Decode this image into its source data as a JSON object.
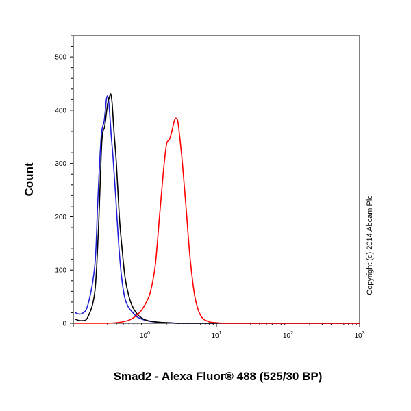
{
  "chart_data": {
    "type": "line",
    "title": "",
    "xlabel": "Smad2 - Alexa Fluor® 488 (525/30 BP)",
    "ylabel": "Count",
    "x_scale": "log",
    "xlim": [
      0.1,
      1000
    ],
    "ylim": [
      0,
      540
    ],
    "x_ticks": [
      {
        "value": 1,
        "base": "10",
        "exp": "0"
      },
      {
        "value": 10,
        "base": "10",
        "exp": "1"
      },
      {
        "value": 100,
        "base": "10",
        "exp": "2"
      },
      {
        "value": 1000,
        "base": "10",
        "exp": "3"
      }
    ],
    "y_ticks": [
      0,
      100,
      200,
      300,
      400,
      500
    ],
    "grid": false,
    "legend": "none",
    "annotation": "Copyright (c) 2014 Abcam Plc",
    "series": [
      {
        "color": "#1f1fd6",
        "x": [
          0.106,
          0.13,
          0.16,
          0.2,
          0.22,
          0.245,
          0.27,
          0.29,
          0.305,
          0.32,
          0.34,
          0.36,
          0.39,
          0.43,
          0.47,
          0.52,
          0.58,
          0.66,
          0.78,
          0.95,
          1.15,
          1.5,
          2,
          3,
          5,
          10,
          1000
        ],
        "y": [
          20,
          18,
          35,
          110,
          230,
          350,
          380,
          420,
          425,
          400,
          350,
          310,
          240,
          150,
          90,
          50,
          32,
          22,
          12,
          7,
          4,
          2,
          1,
          0,
          0,
          0,
          0
        ]
      },
      {
        "color": "#000000",
        "x": [
          0.106,
          0.13,
          0.16,
          0.2,
          0.225,
          0.25,
          0.275,
          0.3,
          0.32,
          0.335,
          0.35,
          0.37,
          0.4,
          0.44,
          0.48,
          0.53,
          0.6,
          0.68,
          0.8,
          0.96,
          1.2,
          1.6,
          2.2,
          3,
          5,
          10,
          1000
        ],
        "y": [
          8,
          5,
          12,
          60,
          180,
          340,
          370,
          410,
          425,
          430,
          410,
          360,
          300,
          200,
          140,
          85,
          50,
          30,
          16,
          8,
          4,
          2,
          1,
          0,
          0,
          0,
          0
        ]
      },
      {
        "color": "#ff0000",
        "x": [
          0.106,
          0.3,
          0.45,
          0.6,
          0.75,
          0.9,
          1.05,
          1.2,
          1.4,
          1.6,
          1.8,
          2.0,
          2.2,
          2.4,
          2.6,
          2.75,
          2.9,
          3.1,
          3.4,
          3.8,
          4.3,
          5.0,
          6.0,
          7.5,
          10,
          20,
          1000
        ],
        "y": [
          0,
          0,
          2,
          6,
          14,
          25,
          40,
          60,
          110,
          200,
          280,
          335,
          345,
          362,
          382,
          385,
          378,
          345,
          290,
          210,
          120,
          50,
          15,
          4,
          1,
          0,
          0
        ]
      }
    ]
  }
}
